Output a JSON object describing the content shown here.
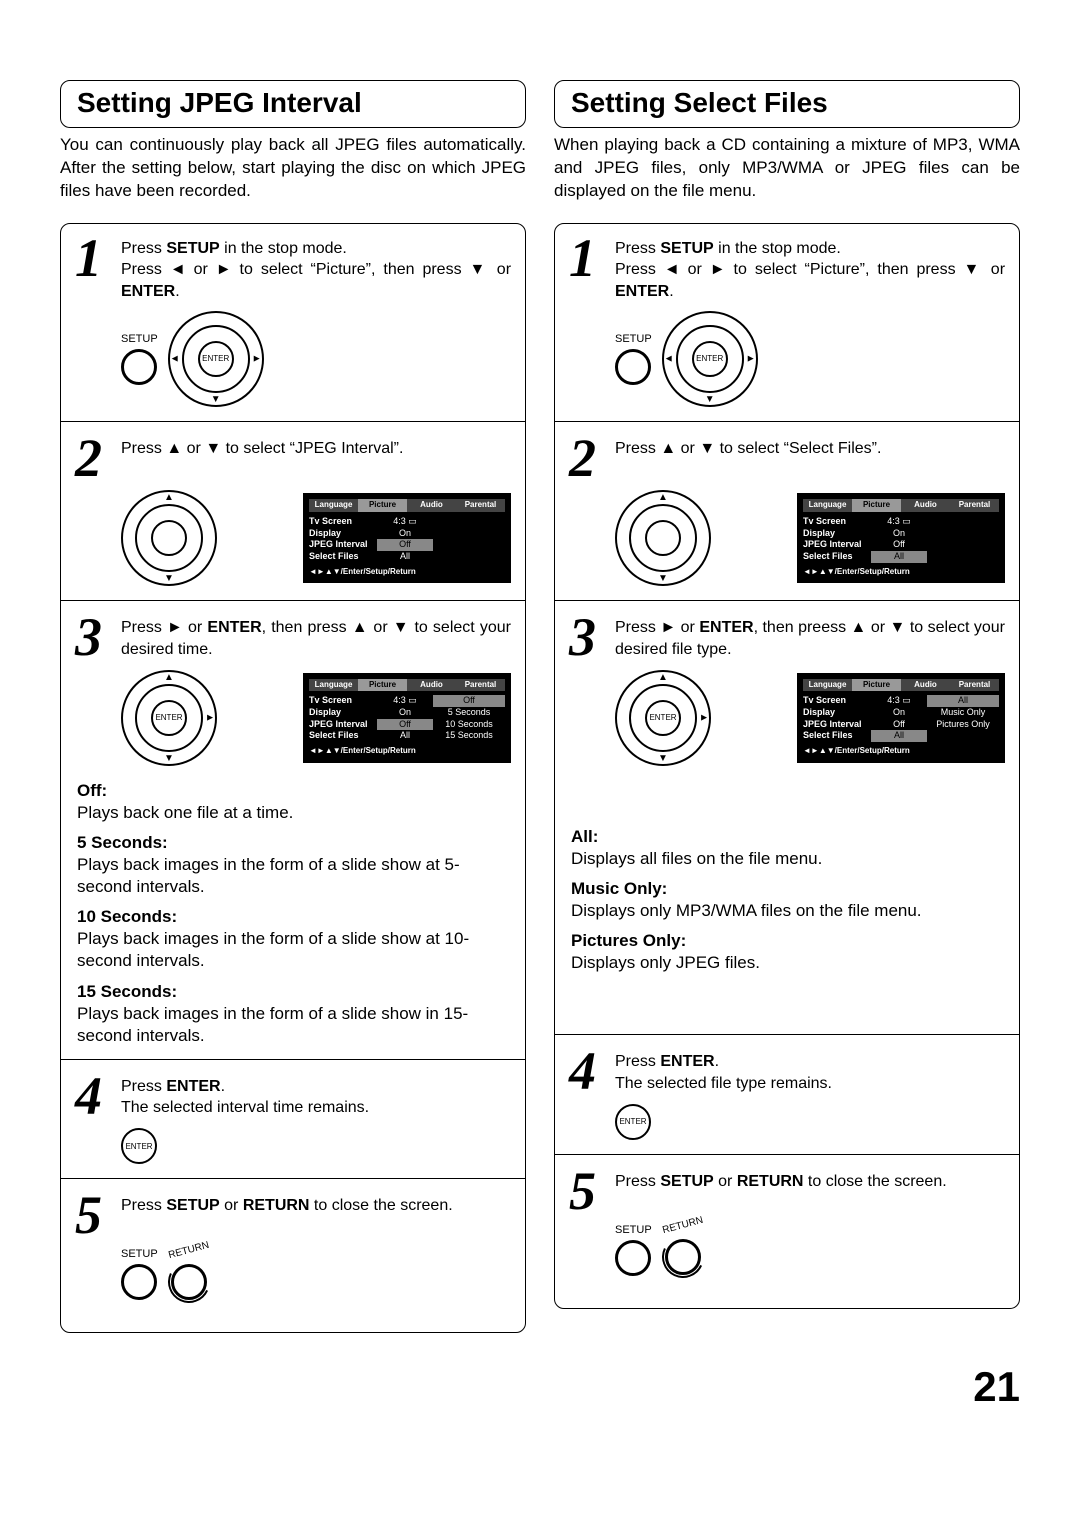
{
  "pageNumber": "21",
  "arrows": {
    "up": "▲",
    "down": "▼",
    "left": "◄",
    "right": "►"
  },
  "common": {
    "setupLabel": "SETUP",
    "enterLabel": "ENTER",
    "returnLabel": "RETURN",
    "osdTabs": [
      "Language",
      "Picture",
      "Audio",
      "Parental"
    ],
    "osdHint": "◄►▲▼/Enter/Setup/Return",
    "osdRows": {
      "tvScreen": "Tv Screen",
      "display": "Display",
      "jpegInterval": "JPEG Interval",
      "selectFiles": "Select Files",
      "val43": "4:3 ▭",
      "valOn": "On",
      "valOff": "Off",
      "valAll": "All"
    }
  },
  "left": {
    "title": "Setting JPEG Interval",
    "intro": "You can continuously play back all JPEG files automatically.\nAfter the setting below, start playing the disc on which JPEG files have been recorded.",
    "step1": "Press <b>SETUP</b> in the stop mode.<br>Press <span class='tri'>◄</span> or <span class='tri'>►</span> to select “Picture”, then press <span class='tri'>▼</span> or <b>ENTER</b>.",
    "step2": "Press <span class='tri'>▲</span> or <span class='tri'>▼</span> to select “JPEG Interval”.",
    "step3": "Press <span class='tri'>►</span> or <b>ENTER</b>, then press <span class='tri'>▲</span> or <span class='tri'>▼</span> to select your desired time.",
    "step3opts": [
      "Off",
      "5 Seconds",
      "10 Seconds",
      "15 Seconds"
    ],
    "options": [
      {
        "t": "Off:",
        "d": "Plays back one file at a time."
      },
      {
        "t": "5 Seconds:",
        "d": "Plays back images in the form of a slide show at 5-second intervals."
      },
      {
        "t": "10 Seconds:",
        "d": "Plays back images in the form of a slide show at 10-second intervals."
      },
      {
        "t": "15 Seconds:",
        "d": "Plays back images in the form of a slide show in 15-second intervals."
      }
    ],
    "step4": "Press <b>ENTER</b>.<br>The selected interval time remains.",
    "step5": "Press <b>SETUP</b> or <b>RETURN</b> to close the screen."
  },
  "right": {
    "title": "Setting Select Files",
    "intro": "When playing back a CD containing a mixture of MP3, WMA and JPEG files, only MP3/WMA or JPEG files can be displayed on the file menu.",
    "step1": "Press <b>SETUP</b> in the stop mode.<br>Press <span class='tri'>◄</span> or <span class='tri'>►</span> to select “Picture”, then press <span class='tri'>▼</span> or <b>ENTER</b>.",
    "step2": "Press <span class='tri'>▲</span> or <span class='tri'>▼</span> to select “Select Files”.",
    "step3": "Press <span class='tri'>►</span> or <b>ENTER</b>, then preess <span class='tri'>▲</span> or <span class='tri'>▼</span> to select your desired file type.",
    "step3opts": [
      "All",
      "Music Only",
      "Pictures Only"
    ],
    "options": [
      {
        "t": "All:",
        "d": "Displays all files on the file menu."
      },
      {
        "t": "Music Only:",
        "d": "Displays only MP3/WMA files on the file menu."
      },
      {
        "t": "Pictures Only:",
        "d": "Displays only JPEG files."
      }
    ],
    "step4": "Press <b>ENTER</b>.<br>The selected file type remains.",
    "step5": "Press <b>SETUP</b> or <b>RETURN</b> to close the screen."
  }
}
